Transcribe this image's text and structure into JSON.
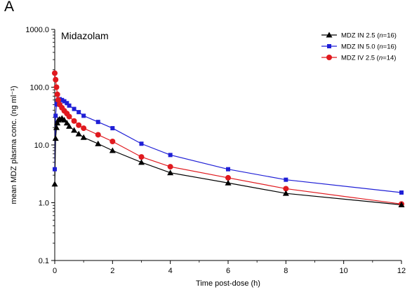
{
  "panel_label": "A",
  "chart_data": {
    "type": "line",
    "title": "Midazolam",
    "xlabel": "Time post-dose (h)",
    "ylabel": "mean MDZ plasma conc. (ng ml⁻¹)",
    "y_scale": "log",
    "xlim": [
      0,
      12
    ],
    "ylim": [
      0.1,
      1000
    ],
    "x_ticks": [
      "0",
      "2",
      "4",
      "6",
      "8",
      "10",
      "12"
    ],
    "y_ticks": [
      "0.1",
      "1.0",
      "10.0",
      "100.0",
      "1000.0"
    ],
    "grid": false,
    "legend_position": "top-right",
    "series": [
      {
        "name": "MDZ IN 2.5 (",
        "n_label": "n",
        "n_value": "=16)",
        "color": "#000000",
        "marker": "triangle",
        "x": [
          0.0,
          0.03,
          0.06,
          0.09,
          0.12,
          0.17,
          0.25,
          0.33,
          0.42,
          0.5,
          0.67,
          0.83,
          1.0,
          1.5,
          2.0,
          3.0,
          4.0,
          6.0,
          8.0,
          12.0
        ],
        "y": [
          2.1,
          13.0,
          20.0,
          24.0,
          27.0,
          28.0,
          29.0,
          27.0,
          24.0,
          21.0,
          18.0,
          15.5,
          13.5,
          10.5,
          8.0,
          5.0,
          3.3,
          2.2,
          1.45,
          0.92
        ]
      },
      {
        "name": "MDZ IN 5.0 (",
        "n_label": "n",
        "n_value": "=16)",
        "color": "#1f1fd6",
        "marker": "square",
        "x": [
          0.0,
          0.03,
          0.06,
          0.09,
          0.12,
          0.17,
          0.25,
          0.33,
          0.42,
          0.5,
          0.67,
          0.83,
          1.0,
          1.5,
          2.0,
          3.0,
          4.0,
          6.0,
          8.0,
          12.0
        ],
        "y": [
          3.8,
          32.0,
          50.0,
          58.0,
          61.0,
          62.0,
          60.0,
          57.0,
          53.0,
          48.0,
          42.0,
          37.0,
          32.0,
          25.0,
          19.5,
          10.5,
          6.7,
          3.8,
          2.5,
          1.5
        ]
      },
      {
        "name": "MDZ IV 2.5 (",
        "n_label": "n",
        "n_value": "=14)",
        "color": "#e0191e",
        "marker": "circle",
        "x": [
          0.0,
          0.03,
          0.06,
          0.09,
          0.12,
          0.17,
          0.25,
          0.33,
          0.42,
          0.5,
          0.67,
          0.83,
          1.0,
          1.5,
          2.0,
          3.0,
          4.0,
          6.0,
          8.0,
          12.0
        ],
        "y": [
          175.0,
          135.0,
          100.0,
          75.0,
          60.0,
          50.0,
          44.0,
          39.0,
          35.0,
          31.0,
          26.0,
          22.0,
          19.5,
          15.0,
          11.5,
          6.2,
          4.2,
          2.7,
          1.75,
          0.95
        ]
      }
    ]
  }
}
